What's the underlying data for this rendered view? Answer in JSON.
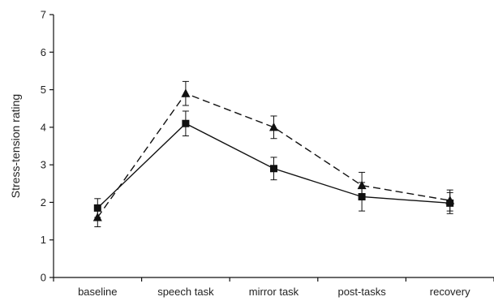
{
  "chart_data": {
    "type": "line",
    "title": "",
    "xlabel": "",
    "ylabel": "Stress-tension rating",
    "categories": [
      "baseline",
      "speech task",
      "mirror task",
      "post-tasks",
      "recovery"
    ],
    "ylim": [
      0,
      7
    ],
    "yticks": [
      "0",
      "1",
      "2",
      "3",
      "4",
      "5",
      "6",
      "7"
    ],
    "grid": false,
    "legend": "none",
    "series": [
      {
        "marker": "square",
        "line_style": "solid",
        "color": "#111111",
        "values": [
          1.85,
          4.1,
          2.9,
          2.15,
          1.98
        ],
        "error": [
          0.25,
          0.33,
          0.3,
          0.38,
          0.28
        ]
      },
      {
        "marker": "triangle",
        "line_style": "dashed",
        "color": "#111111",
        "values": [
          1.6,
          4.9,
          4.0,
          2.45,
          2.05
        ],
        "error": [
          0.25,
          0.32,
          0.3,
          0.35,
          0.28
        ]
      }
    ]
  }
}
